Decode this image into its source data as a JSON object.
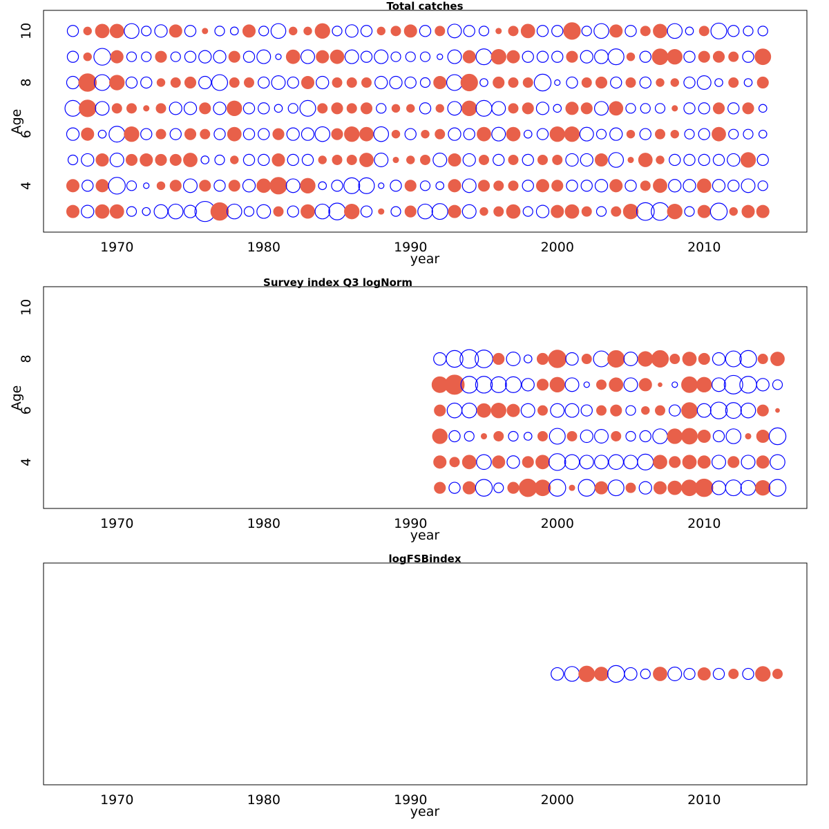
{
  "figure": {
    "panels": [
      {
        "title": "Total catches",
        "xlabel": "year",
        "ylabel": "Age",
        "y_ticks": [
          "4",
          "6",
          "8",
          "10"
        ],
        "x_ticks": [
          "1970",
          "1980",
          "1990",
          "2000",
          "2010"
        ]
      },
      {
        "title": "Survey index Q3 logNorm",
        "xlabel": "year",
        "ylabel": "Age",
        "y_ticks": [
          "4",
          "6",
          "8",
          "10"
        ],
        "x_ticks": [
          "1970",
          "1980",
          "1990",
          "2000",
          "2010"
        ]
      },
      {
        "title": "logFSBindex",
        "xlabel": "year",
        "ylabel": "",
        "y_ticks": [],
        "x_ticks": [
          "1970",
          "1980",
          "1990",
          "2000",
          "2010"
        ]
      }
    ]
  },
  "colors": {
    "positive": "#e8604a",
    "negative": "#0000ff",
    "frame": "#000000"
  },
  "chart_data": [
    {
      "type": "scatter",
      "title": "Total catches",
      "xlabel": "year",
      "ylabel": "Age",
      "xlim": [
        1965,
        2017
      ],
      "ylim": [
        2.2,
        10.8
      ],
      "x_ticks": [
        1970,
        1980,
        1990,
        2000,
        2010
      ],
      "y_ticks": [
        4,
        6,
        8,
        10
      ],
      "note": "bubble plot of residuals; filled red = positive, open blue = negative; size ~ magnitude",
      "x": [
        1967,
        1968,
        1969,
        1970,
        1971,
        1972,
        1973,
        1974,
        1975,
        1976,
        1977,
        1978,
        1979,
        1980,
        1981,
        1982,
        1983,
        1984,
        1985,
        1986,
        1987,
        1988,
        1989,
        1990,
        1991,
        1992,
        1993,
        1994,
        1995,
        1996,
        1997,
        1998,
        1999,
        2000,
        2001,
        2002,
        2003,
        2004,
        2005,
        2006,
        2007,
        2008,
        2009,
        2010,
        2011,
        2012,
        2013,
        2014
      ],
      "series": [
        {
          "age": 3,
          "values": [
            0.5,
            -0.5,
            0.6,
            0.6,
            -0.3,
            -0.2,
            -0.6,
            -0.7,
            -0.5,
            -1.3,
            1.0,
            -0.7,
            -0.3,
            -0.6,
            0.3,
            -0.4,
            0.6,
            -0.7,
            -0.9,
            0.7,
            -0.4,
            0.1,
            -0.3,
            0.4,
            -0.7,
            -0.8,
            0.5,
            -0.6,
            0.2,
            0.3,
            0.6,
            -0.3,
            -0.5,
            0.5,
            0.6,
            0.3,
            -0.3,
            0.3,
            0.7,
            -1.0,
            -1.0,
            0.7,
            -0.3,
            0.5,
            -0.9,
            0.2,
            0.5,
            0.5
          ]
        },
        {
          "age": 4,
          "values": [
            0.5,
            -0.4,
            0.5,
            -0.9,
            -0.3,
            -0.1,
            0.2,
            0.4,
            -0.6,
            0.4,
            -0.4,
            0.4,
            -0.5,
            0.6,
            0.9,
            -0.6,
            0.7,
            -0.2,
            -0.4,
            -0.8,
            -0.8,
            -0.1,
            -0.4,
            0.4,
            -0.3,
            -0.2,
            0.5,
            -0.6,
            0.4,
            0.3,
            0.3,
            -0.4,
            0.5,
            0.4,
            -0.4,
            -0.4,
            -0.5,
            0.5,
            -0.4,
            0.3,
            0.6,
            -0.5,
            -0.5,
            0.6,
            -0.5,
            -0.4,
            -0.6,
            -0.3
          ]
        },
        {
          "age": 5,
          "values": [
            -0.3,
            -0.5,
            0.5,
            -0.6,
            0.4,
            0.5,
            0.4,
            0.4,
            0.6,
            -0.2,
            -0.3,
            0.2,
            -0.4,
            -0.4,
            0.5,
            -0.4,
            -0.4,
            0.2,
            0.3,
            0.3,
            0.6,
            -0.6,
            0.1,
            0.2,
            0.3,
            -0.6,
            0.5,
            -0.5,
            0.3,
            -0.4,
            0.3,
            -0.4,
            0.3,
            0.3,
            -0.5,
            -0.5,
            0.5,
            -0.7,
            0.1,
            0.6,
            0.2,
            -0.4,
            -0.4,
            -0.4,
            -0.4,
            -0.5,
            0.7,
            -0.4
          ]
        },
        {
          "age": 6,
          "values": [
            -0.5,
            0.5,
            -0.2,
            -0.8,
            0.7,
            -0.4,
            0.3,
            -0.4,
            0.4,
            0.3,
            -0.4,
            0.6,
            -0.4,
            -0.4,
            0.4,
            -0.5,
            -0.5,
            -0.7,
            0.4,
            0.7,
            0.6,
            -0.7,
            0.2,
            -0.4,
            0.2,
            0.3,
            -0.5,
            -0.4,
            0.6,
            -0.6,
            0.6,
            -0.2,
            -0.4,
            0.7,
            0.7,
            -0.6,
            -0.3,
            -0.5,
            0.2,
            -0.4,
            0.3,
            0.2,
            -0.3,
            -0.4,
            0.6,
            -0.3,
            -0.3,
            -0.2
          ]
        },
        {
          "age": 7,
          "values": [
            -0.8,
            0.9,
            -0.6,
            0.3,
            0.3,
            0.1,
            0.3,
            -0.5,
            -0.5,
            0.4,
            -0.5,
            0.7,
            -0.4,
            -0.4,
            -0.2,
            -0.3,
            -0.8,
            0.3,
            0.4,
            0.3,
            0.4,
            -0.3,
            0.2,
            0.2,
            -0.4,
            0.2,
            -0.6,
            0.7,
            -0.8,
            -0.6,
            0.3,
            0.4,
            -0.5,
            -0.2,
            0.5,
            0.4,
            -0.6,
            0.6,
            -0.3,
            -0.3,
            -0.3,
            0.1,
            -0.4,
            -0.4,
            0.4,
            -0.4,
            0.4,
            -0.2
          ]
        },
        {
          "age": 8,
          "values": [
            -0.5,
            1.0,
            -0.8,
            0.7,
            -0.4,
            -0.4,
            0.2,
            0.3,
            0.4,
            -0.5,
            -0.8,
            0.3,
            0.3,
            -0.4,
            -0.6,
            -0.4,
            0.5,
            -0.5,
            0.3,
            0.3,
            0.3,
            -0.5,
            -0.5,
            -0.4,
            -0.3,
            0.5,
            -0.8,
            0.9,
            -0.2,
            0.4,
            0.3,
            0.3,
            -0.9,
            -0.1,
            -0.4,
            0.3,
            0.4,
            -0.4,
            0.3,
            -0.4,
            0.2,
            0.2,
            -0.4,
            -0.6,
            -0.2,
            0.3,
            -0.2,
            0.4
          ]
        },
        {
          "age": 9,
          "values": [
            -0.4,
            0.2,
            -0.9,
            0.5,
            -0.3,
            -0.3,
            0.4,
            -0.3,
            -0.4,
            -0.5,
            -0.5,
            0.4,
            -0.4,
            -0.6,
            -0.1,
            0.6,
            -0.6,
            0.5,
            0.6,
            -0.6,
            -0.4,
            -0.6,
            -0.3,
            -0.3,
            -0.3,
            -0.1,
            -0.6,
            0.5,
            -0.8,
            0.7,
            0.5,
            -0.4,
            -0.4,
            -0.4,
            0.4,
            -0.5,
            -0.6,
            -0.8,
            0.2,
            -0.4,
            0.8,
            0.7,
            -0.4,
            0.4,
            0.4,
            0.3,
            -0.4,
            0.8
          ]
        },
        {
          "age": 10,
          "values": [
            -0.4,
            0.2,
            0.6,
            0.6,
            -0.7,
            -0.3,
            -0.5,
            0.5,
            -0.4,
            0.1,
            -0.3,
            -0.2,
            0.5,
            -0.3,
            -0.7,
            0.2,
            0.2,
            0.7,
            -0.3,
            -0.5,
            -0.4,
            0.2,
            0.3,
            0.5,
            -0.4,
            0.3,
            -0.6,
            -0.4,
            -0.3,
            0.1,
            0.3,
            0.6,
            -0.4,
            -0.4,
            0.9,
            -0.3,
            -0.7,
            0.5,
            -0.4,
            0.3,
            0.6,
            -0.7,
            -0.2,
            0.3,
            -0.8,
            -0.4,
            -0.3,
            -0.3
          ]
        }
      ]
    },
    {
      "type": "scatter",
      "title": "Survey index Q3 logNorm",
      "xlabel": "year",
      "ylabel": "Age",
      "xlim": [
        1965,
        2017
      ],
      "ylim": [
        2.2,
        10.8
      ],
      "x_ticks": [
        1970,
        1980,
        1990,
        2000,
        2010
      ],
      "y_ticks": [
        4,
        6,
        8,
        10
      ],
      "note": "bubble plot of residuals; filled red = positive, open blue = negative; size ~ magnitude",
      "x": [
        1992,
        1993,
        1994,
        1995,
        1996,
        1997,
        1998,
        1999,
        2000,
        2001,
        2002,
        2003,
        2004,
        2005,
        2006,
        2007,
        2008,
        2009,
        2010,
        2011,
        2012,
        2013,
        2014,
        2015
      ],
      "series": [
        {
          "age": 3,
          "values": [
            0.4,
            -0.4,
            0.5,
            -0.9,
            -0.3,
            0.4,
            1.0,
            0.8,
            -0.9,
            0.1,
            -0.9,
            0.5,
            -0.8,
            0.3,
            -0.5,
            0.5,
            0.6,
            0.8,
            1.0,
            -0.6,
            -0.8,
            -0.7,
            0.7,
            -0.9
          ]
        },
        {
          "age": 4,
          "values": [
            0.5,
            0.3,
            0.6,
            -0.7,
            0.5,
            -0.5,
            0.4,
            0.6,
            -0.9,
            -0.7,
            -0.6,
            -0.6,
            -0.7,
            -0.6,
            -0.8,
            0.6,
            0.4,
            0.6,
            0.5,
            -0.6,
            0.4,
            -0.6,
            0.5,
            -0.7
          ]
        },
        {
          "age": 5,
          "values": [
            0.7,
            -0.4,
            -0.3,
            0.1,
            0.3,
            -0.3,
            -0.2,
            0.3,
            -0.8,
            0.3,
            -0.5,
            -0.6,
            0.3,
            -0.3,
            -0.4,
            -0.7,
            0.7,
            0.8,
            0.5,
            -0.4,
            -0.7,
            0.1,
            0.5,
            -0.9
          ]
        },
        {
          "age": 6,
          "values": [
            0.4,
            -0.7,
            -0.7,
            0.6,
            0.7,
            0.5,
            -0.6,
            0.3,
            -0.6,
            -0.6,
            -0.4,
            0.3,
            0.4,
            -0.3,
            0.2,
            0.3,
            -0.4,
            0.8,
            -0.6,
            -0.9,
            -0.8,
            -0.7,
            0.4,
            0.05
          ]
        },
        {
          "age": 7,
          "values": [
            0.8,
            1.2,
            -0.9,
            -0.9,
            -0.8,
            -0.8,
            -0.5,
            0.4,
            0.7,
            -0.6,
            -0.1,
            0.3,
            0.6,
            -0.6,
            0.5,
            0.05,
            -0.1,
            0.8,
            0.7,
            -0.6,
            -1.1,
            -0.9,
            -0.5,
            -0.3
          ]
        },
        {
          "age": 8,
          "values": [
            -0.5,
            -0.9,
            -1.1,
            -1.0,
            0.4,
            -0.6,
            -0.2,
            0.4,
            1.0,
            -0.5,
            0.3,
            -0.8,
            0.9,
            -0.6,
            0.7,
            0.9,
            0.3,
            0.6,
            0.4,
            -0.5,
            -0.8,
            -0.9,
            0.3,
            0.6
          ]
        }
      ]
    },
    {
      "type": "scatter",
      "title": "logFSBindex",
      "xlabel": "year",
      "ylabel": "",
      "xlim": [
        1965,
        2017
      ],
      "x_ticks": [
        1970,
        1980,
        1990,
        2000,
        2010
      ],
      "note": "bubble plot of residuals; filled red = positive, open blue = negative; size ~ magnitude",
      "x": [
        2000,
        2001,
        2002,
        2003,
        2004,
        2005,
        2006,
        2007,
        2008,
        2009,
        2010,
        2011,
        2012,
        2013,
        2014,
        2015
      ],
      "series": [
        {
          "values": [
            -0.5,
            -0.7,
            0.8,
            0.6,
            -0.9,
            -0.5,
            -0.3,
            0.6,
            -0.6,
            -0.4,
            0.5,
            -0.4,
            0.3,
            -0.4,
            0.7,
            0.3
          ]
        }
      ]
    }
  ]
}
